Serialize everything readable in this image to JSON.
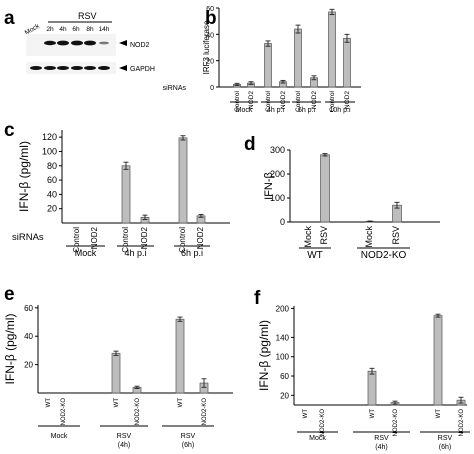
{
  "panels": {
    "a": {
      "letter": "a",
      "group_label": "RSV",
      "lanes": [
        "Mock",
        "2h",
        "4h",
        "6h",
        "8h",
        "14h"
      ],
      "bands": [
        "NOD2",
        "GAPDH"
      ]
    },
    "b": {
      "letter": "b",
      "sirna_label": "siRNAs"
    },
    "c": {
      "letter": "c",
      "sirna_label": "siRNAs"
    },
    "d": {
      "letter": "d"
    },
    "e": {
      "letter": "e"
    },
    "f": {
      "letter": "f"
    }
  },
  "chart_data": [
    {
      "panel": "b",
      "type": "bar",
      "ylabel": "IRF3 luciferase",
      "ylim": [
        0,
        60
      ],
      "yticks": [
        0,
        20,
        40,
        60
      ],
      "categories": [
        "Control",
        "NOD2",
        "Control",
        "NOD2",
        "Control",
        "NOD2",
        "Control",
        "NOD2"
      ],
      "groups": [
        "Mock",
        "4h p.i",
        "6h p.i",
        "10h p.i"
      ],
      "values": [
        2,
        3,
        33,
        4,
        44,
        7,
        57,
        37
      ],
      "errors": [
        0.8,
        1,
        2,
        1,
        3,
        1.5,
        2,
        3
      ]
    },
    {
      "panel": "c",
      "type": "bar",
      "ylabel": "IFN-β (pg/ml)",
      "ylim": [
        0,
        130
      ],
      "yticks": [
        20,
        40,
        60,
        80,
        100,
        120
      ],
      "categories": [
        "Control",
        "NOD2",
        "Control",
        "NOD2",
        "Control",
        "NOD2"
      ],
      "groups": [
        "Mock",
        "4h p.i",
        "6h p.i"
      ],
      "values": [
        0,
        0,
        80,
        8,
        119,
        10
      ],
      "errors": [
        0,
        0,
        5,
        3,
        3,
        2
      ]
    },
    {
      "panel": "d",
      "type": "bar",
      "ylabel": "IFN-β",
      "ylim": [
        0,
        300
      ],
      "yticks": [
        0,
        100,
        200,
        300
      ],
      "categories": [
        "Mock",
        "RSV",
        "Mock",
        "RSV"
      ],
      "groups": [
        "WT",
        "NOD2-KO"
      ],
      "values": [
        0,
        280,
        3,
        70
      ],
      "errors": [
        0,
        5,
        1,
        12
      ]
    },
    {
      "panel": "e",
      "type": "bar",
      "ylabel": "IFN-β (pg/ml)",
      "ylim": [
        0,
        62
      ],
      "yticks": [
        20,
        40,
        60
      ],
      "categories": [
        "WT",
        "NOD2-KO",
        "WT",
        "NOD2-KO",
        "WT",
        "NOD2-KO"
      ],
      "groups": [
        "Mock",
        "RSV\n(4h)",
        "RSV\n(6h)"
      ],
      "values": [
        0,
        0,
        28,
        4,
        52,
        7
      ],
      "errors": [
        0,
        0,
        1.5,
        0.8,
        1.5,
        3
      ]
    },
    {
      "panel": "f",
      "type": "bar",
      "ylabel": "IFN-β (pg/ml)",
      "ylim": [
        0,
        205
      ],
      "yticks": [
        20,
        60,
        100,
        140,
        200
      ],
      "categories": [
        "WT",
        "NOD2-KO",
        "WT",
        "NOD2-KO",
        "WT",
        "NOD2-KO"
      ],
      "groups": [
        "Mock",
        "RSV\n(4h)",
        "RSV\n(6h)"
      ],
      "values": [
        0,
        0,
        70,
        5,
        185,
        10
      ],
      "errors": [
        0,
        0,
        6,
        3,
        3,
        6
      ]
    }
  ]
}
